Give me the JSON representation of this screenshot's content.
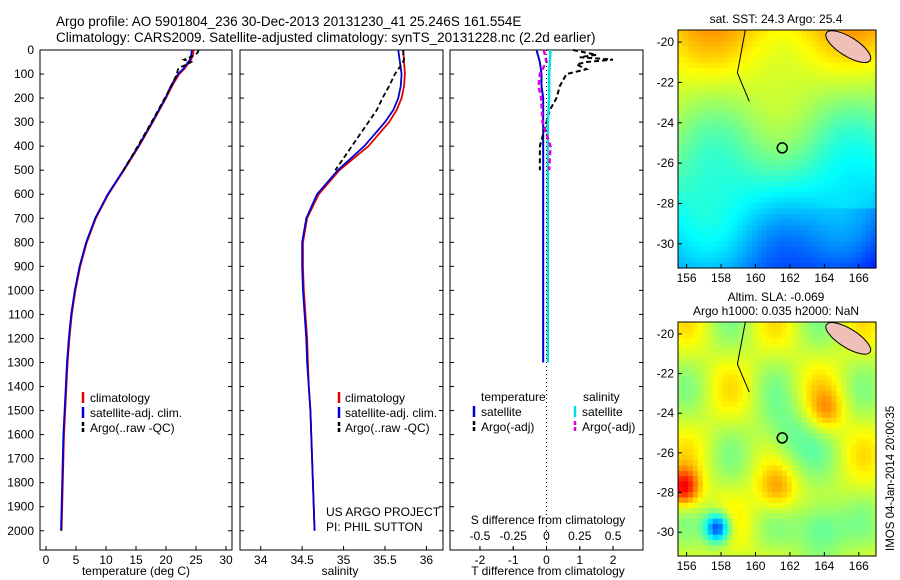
{
  "header": {
    "line1": "Argo profile: AO 5901804_236 30-Dec-2013 20131230_41 25.246S 161.554E",
    "line2": "Climatology: CARS2009. Satellite-adjusted climatology: synTS_20131228.nc (2.2d earlier)"
  },
  "colors": {
    "climatology": "#e00000",
    "satellite": "#0000d0",
    "argo": "#000000",
    "sat_s": "#00e0e0",
    "argo_s": "#e000e0"
  },
  "panels": {
    "temperature": {
      "xlabel": "temperature (deg C)",
      "legend": [
        "climatology",
        "satellite-adj. clim.",
        "Argo(..raw -QC)"
      ]
    },
    "salinity": {
      "xlabel": "salinity",
      "legend": [
        "climatology",
        "satellite-adj. clim.",
        "Argo(..raw -QC)"
      ],
      "credit1": "US ARGO PROJECT",
      "credit2": "PI: PHIL SUTTON"
    },
    "difference": {
      "xlabel": "T difference from climatology",
      "s_label": "S difference from climatology",
      "legend_head_t": "temperature",
      "legend_head_s": "salinity",
      "legend_t": [
        "satellite",
        "Argo(-adj)"
      ],
      "legend_s": [
        "satellite",
        "Argo(-adj)"
      ]
    }
  },
  "maps": {
    "sst_title": "sat. SST: 24.3  Argo: 25.4",
    "sla_title1": "Altim. SLA: -0.069",
    "sla_title2": "Argo h1000: 0.035 h2000: NaN",
    "side_label": "IMOS 04-Jan-2014 20:00:35"
  },
  "chart_data": [
    {
      "type": "line",
      "name": "temperature-profile",
      "xlabel": "temperature (deg C)",
      "xlim": [
        -1,
        31
      ],
      "ylim": [
        0,
        2080
      ],
      "x_ticks": [
        0,
        5,
        10,
        15,
        20,
        25,
        30
      ],
      "y_ticks": [
        0,
        100,
        200,
        300,
        400,
        500,
        600,
        700,
        800,
        900,
        1000,
        1100,
        1200,
        1300,
        1400,
        1500,
        1600,
        1700,
        1800,
        1900,
        2000
      ],
      "y_reversed": true,
      "series": [
        {
          "name": "climatology",
          "depth": [
            0,
            20,
            40,
            60,
            80,
            100,
            150,
            200,
            250,
            300,
            400,
            500,
            600,
            700,
            800,
            900,
            1000,
            1100,
            1200,
            1300,
            1400,
            1500,
            1600,
            1700,
            1800,
            1900,
            2000
          ],
          "values": [
            24.6,
            24.5,
            24.2,
            23.6,
            23.0,
            22.2,
            21.0,
            20.0,
            18.9,
            17.8,
            15.5,
            13.0,
            10.4,
            8.3,
            6.8,
            5.7,
            4.9,
            4.3,
            3.9,
            3.6,
            3.4,
            3.2,
            3.0,
            2.9,
            2.8,
            2.7,
            2.6
          ]
        },
        {
          "name": "satellite-adj. clim.",
          "depth": [
            0,
            20,
            40,
            60,
            80,
            100,
            150,
            200,
            250,
            300,
            400,
            500,
            600,
            700,
            800,
            900,
            1000,
            1100,
            1200,
            1300,
            1400,
            1500,
            1600,
            1700,
            1800,
            1900,
            2000
          ],
          "values": [
            24.3,
            24.2,
            24.0,
            23.4,
            22.8,
            22.0,
            20.8,
            19.9,
            18.8,
            17.7,
            15.4,
            12.9,
            10.3,
            8.2,
            6.7,
            5.6,
            4.8,
            4.2,
            3.8,
            3.5,
            3.3,
            3.1,
            2.9,
            2.8,
            2.7,
            2.6,
            2.5
          ]
        },
        {
          "name": "Argo(..raw -QC)",
          "depth": [
            0,
            10,
            20,
            30,
            40,
            50,
            60,
            70,
            80,
            100,
            150,
            200,
            250,
            300,
            400,
            500
          ],
          "values": [
            25.4,
            25.3,
            24.9,
            24.0,
            23.0,
            24.2,
            23.5,
            22.5,
            22.0,
            21.8,
            20.9,
            19.8,
            18.7,
            17.6,
            15.3,
            12.9
          ]
        }
      ]
    },
    {
      "type": "line",
      "name": "salinity-profile",
      "xlabel": "salinity",
      "xlim": [
        33.75,
        36.2
      ],
      "ylim": [
        0,
        2080
      ],
      "x_ticks": [
        34,
        34.5,
        35,
        35.5,
        36
      ],
      "y_reversed": true,
      "series": [
        {
          "name": "climatology",
          "depth": [
            0,
            50,
            100,
            150,
            200,
            250,
            300,
            400,
            500,
            600,
            700,
            800,
            900,
            1000,
            1100,
            1200,
            1300,
            1400,
            1500,
            1600,
            1700,
            1800,
            1900,
            2000
          ],
          "values": [
            35.72,
            35.73,
            35.74,
            35.73,
            35.7,
            35.64,
            35.55,
            35.3,
            34.95,
            34.7,
            34.56,
            34.51,
            34.51,
            34.52,
            34.54,
            34.56,
            34.57,
            34.58,
            34.6,
            34.61,
            34.62,
            34.63,
            34.64,
            34.65
          ]
        },
        {
          "name": "satellite-adj. clim.",
          "depth": [
            0,
            50,
            100,
            150,
            200,
            250,
            300,
            400,
            500,
            600,
            700,
            800,
            900,
            1000,
            1100,
            1200,
            1300,
            1400,
            1500,
            1600,
            1700,
            1800,
            1900,
            2000
          ],
          "values": [
            35.66,
            35.68,
            35.7,
            35.69,
            35.66,
            35.6,
            35.5,
            35.25,
            34.93,
            34.68,
            34.55,
            34.5,
            34.5,
            34.51,
            34.53,
            34.55,
            34.56,
            34.58,
            34.6,
            34.61,
            34.62,
            34.63,
            34.64,
            34.65
          ]
        },
        {
          "name": "Argo(..raw -QC)",
          "depth": [
            0,
            20,
            40,
            60,
            80,
            100,
            150,
            200,
            250,
            300,
            400,
            500
          ],
          "values": [
            35.72,
            35.72,
            35.73,
            35.7,
            35.66,
            35.62,
            35.55,
            35.47,
            35.4,
            35.3,
            35.1,
            34.9
          ]
        }
      ]
    },
    {
      "type": "line",
      "name": "difference-profile",
      "xlabel": "T difference from climatology",
      "xlim": [
        -2.9,
        2.9
      ],
      "x_ticks": [
        -2,
        -1,
        0,
        1,
        2
      ],
      "top_x_ticks": [
        -0.5,
        -0.25,
        0,
        0.25,
        0.5
      ],
      "s_label": "S difference from climatology",
      "ylim": [
        0,
        2080
      ],
      "y_reversed": true,
      "series": [
        {
          "name": "satellite T",
          "depth": [
            0,
            50,
            100,
            150,
            200,
            300,
            400,
            500,
            600,
            700,
            800,
            900,
            1000,
            1100,
            1200,
            1300
          ],
          "values": [
            -0.3,
            -0.2,
            -0.15,
            -0.15,
            -0.1,
            -0.1,
            -0.1,
            -0.1,
            -0.1,
            -0.1,
            -0.1,
            -0.1,
            -0.1,
            -0.1,
            -0.1,
            -0.1
          ]
        },
        {
          "name": "Argo(-adj) T",
          "depth": [
            0,
            20,
            30,
            40,
            50,
            60,
            80,
            100,
            150,
            200,
            250,
            300,
            400,
            500
          ],
          "values": [
            0.8,
            1.5,
            1.0,
            2.0,
            1.2,
            0.9,
            1.2,
            0.6,
            0.4,
            0.3,
            0.1,
            0.0,
            -0.2,
            -0.2
          ]
        },
        {
          "name": "satellite S",
          "depth": [
            0,
            100,
            200,
            300,
            400,
            500,
            600,
            700,
            800,
            900,
            1000,
            1100,
            1200,
            1300
          ],
          "values": [
            0.03,
            0.02,
            0.02,
            0.01,
            0.01,
            0.01,
            0.01,
            0.01,
            0.01,
            0.01,
            0.01,
            0.01,
            0.01,
            0.01
          ]
        },
        {
          "name": "Argo(-adj) S",
          "depth": [
            0,
            50,
            100,
            150,
            200,
            300,
            400,
            500
          ],
          "values": [
            -0.02,
            0.0,
            -0.05,
            -0.06,
            -0.04,
            -0.03,
            0.03,
            0.02
          ]
        }
      ]
    },
    {
      "type": "heatmap",
      "name": "sst-map",
      "title": "sat. SST: 24.3  Argo: 25.4",
      "xlim": [
        155.5,
        167
      ],
      "ylim": [
        -31.2,
        -19.4
      ],
      "x_ticks": [
        156,
        158,
        160,
        162,
        164,
        166
      ],
      "y_ticks": [
        -20,
        -22,
        -24,
        -26,
        -28,
        -30
      ],
      "marker": {
        "lon": 161.554,
        "lat": -25.246
      }
    },
    {
      "type": "heatmap",
      "name": "sla-map",
      "title": "Altim. SLA: -0.069",
      "xlim": [
        155.5,
        167
      ],
      "ylim": [
        -31.2,
        -19.4
      ],
      "x_ticks": [
        156,
        158,
        160,
        162,
        164,
        166
      ],
      "y_ticks": [
        -20,
        -22,
        -24,
        -26,
        -28,
        -30
      ],
      "marker": {
        "lon": 161.554,
        "lat": -25.246
      }
    }
  ]
}
